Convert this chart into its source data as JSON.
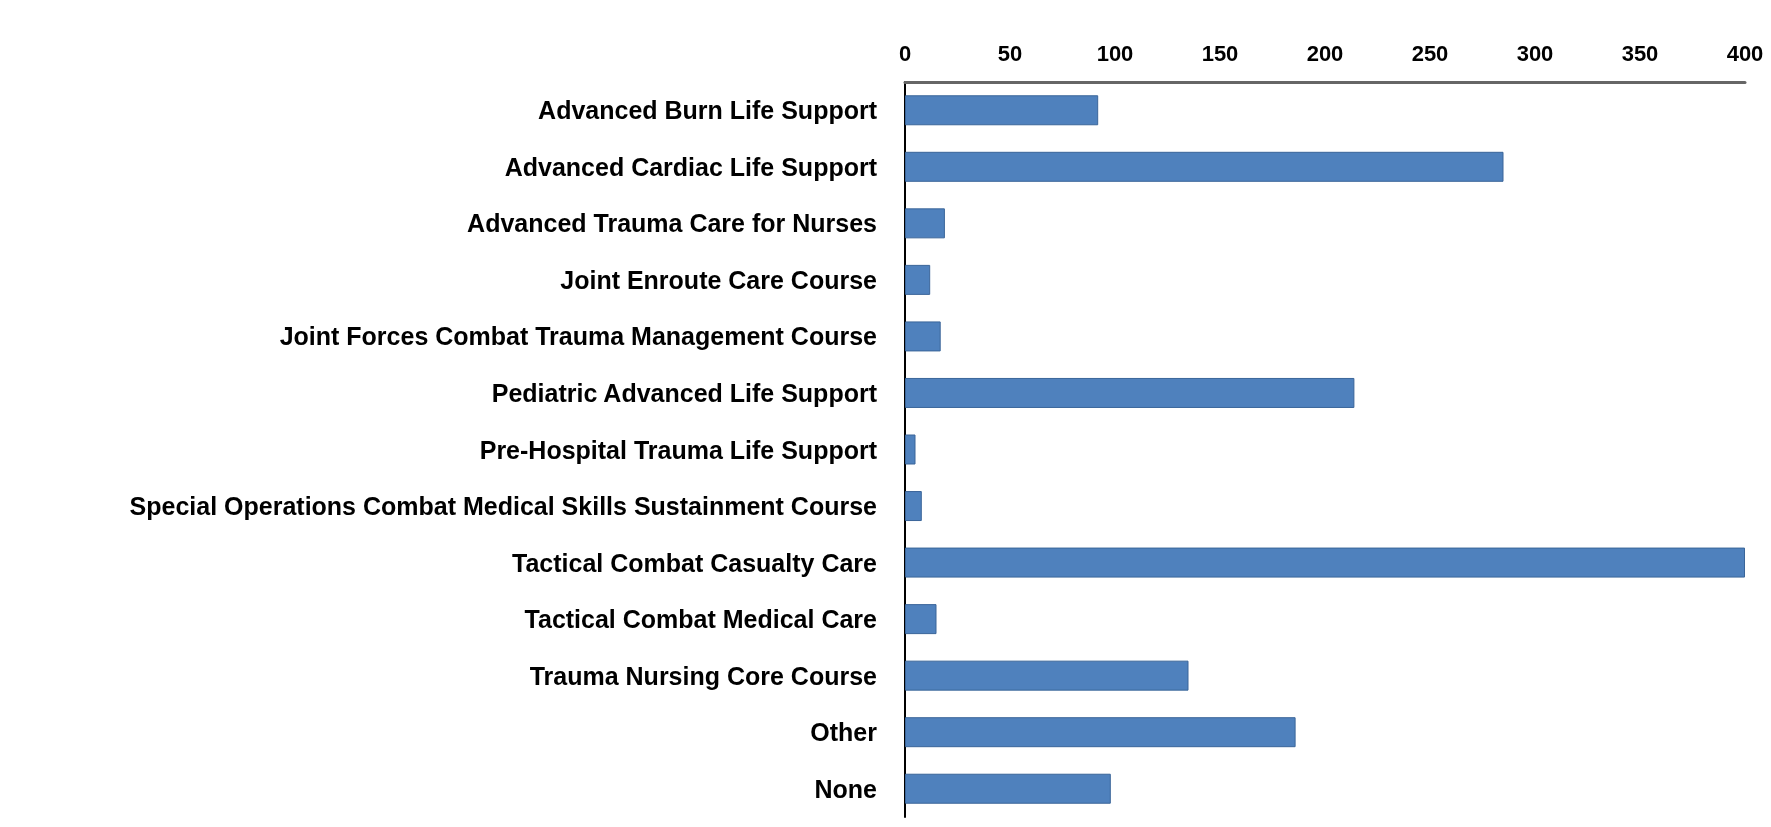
{
  "chart_data": {
    "type": "bar",
    "orientation": "horizontal",
    "categories": [
      "Advanced Burn Life Support",
      "Advanced Cardiac Life Support",
      "Advanced Trauma Care for Nurses",
      "Joint Enroute Care Course",
      "Joint Forces Combat Trauma Management Course",
      "Pediatric Advanced Life Support",
      "Pre-Hospital Trauma Life Support",
      "Special Operations Combat Medical Skills Sustainment Course",
      "Tactical Combat Casualty Care",
      "Tactical Combat Medical Care",
      "Trauma Nursing Core Course",
      "Other",
      "None"
    ],
    "values": [
      92,
      285,
      19,
      12,
      17,
      214,
      5,
      8,
      400,
      15,
      135,
      186,
      98
    ],
    "color": "#4f81bd",
    "xlim": [
      0,
      400
    ],
    "xticks": [
      0,
      50,
      100,
      150,
      200,
      250,
      300,
      350,
      400
    ],
    "grid": false
  }
}
